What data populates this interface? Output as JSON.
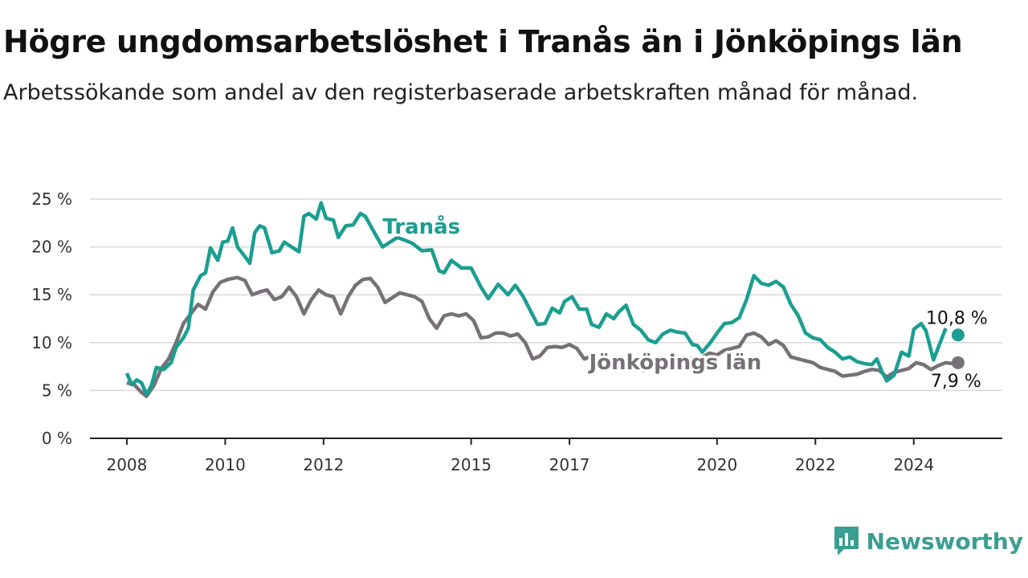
{
  "title": "Högre ungdomsarbetslöshet i Tranås än i Jönköpings län",
  "subtitle": "Arbetssökande som andel av den registerbaserade arbetskraften månad för månad.",
  "brand": {
    "name": "Newsworthy",
    "icon": "newsworthy-logo-icon",
    "color": "#3a9e92"
  },
  "chart_data": {
    "type": "line",
    "title": "Högre ungdomsarbetslöshet i Tranås än i Jönköpings län",
    "subtitle": "Arbetssökande som andel av den registerbaserade arbetskraften månad för månad.",
    "xlabel": "",
    "ylabel": "",
    "x_ticks": [
      {
        "year": 2008,
        "label": "2008"
      },
      {
        "year": 2010,
        "label": "2010"
      },
      {
        "year": 2012,
        "label": "2012"
      },
      {
        "year": 2015,
        "label": "2015"
      },
      {
        "year": 2017,
        "label": "2017"
      },
      {
        "year": 2020,
        "label": "2020"
      },
      {
        "year": 2022,
        "label": "2022"
      },
      {
        "year": 2024,
        "label": "2024"
      }
    ],
    "y_ticks": [
      {
        "value": 0,
        "label": "0 %"
      },
      {
        "value": 5,
        "label": "5 %"
      },
      {
        "value": 10,
        "label": "10 %"
      },
      {
        "value": 15,
        "label": "15 %"
      },
      {
        "value": 20,
        "label": "20 %"
      },
      {
        "value": 25,
        "label": "25 %"
      }
    ],
    "xlim": [
      2007.25,
      2025.8
    ],
    "ylim": [
      0,
      25
    ],
    "grid": true,
    "series": [
      {
        "name": "Tranås",
        "color": "#1a9e91",
        "end_label": "10,8 %",
        "end_value": 10.8,
        "end_x": 2024.9,
        "points": [
          [
            2008.0,
            6.8
          ],
          [
            2008.1,
            5.6
          ],
          [
            2008.2,
            6.1
          ],
          [
            2008.3,
            5.8
          ],
          [
            2008.4,
            4.6
          ],
          [
            2008.5,
            5.5
          ],
          [
            2008.6,
            7.4
          ],
          [
            2008.75,
            7.2
          ],
          [
            2008.9,
            7.9
          ],
          [
            2009.0,
            9.5
          ],
          [
            2009.15,
            10.5
          ],
          [
            2009.25,
            11.5
          ],
          [
            2009.35,
            15.5
          ],
          [
            2009.5,
            17.0
          ],
          [
            2009.6,
            17.3
          ],
          [
            2009.7,
            19.9
          ],
          [
            2009.85,
            18.6
          ],
          [
            2009.95,
            20.5
          ],
          [
            2010.05,
            20.6
          ],
          [
            2010.15,
            22.0
          ],
          [
            2010.25,
            20.0
          ],
          [
            2010.4,
            19.0
          ],
          [
            2010.5,
            18.3
          ],
          [
            2010.6,
            21.5
          ],
          [
            2010.7,
            22.2
          ],
          [
            2010.8,
            22.0
          ],
          [
            2010.95,
            19.4
          ],
          [
            2011.1,
            19.6
          ],
          [
            2011.2,
            20.5
          ],
          [
            2011.35,
            20.0
          ],
          [
            2011.5,
            19.5
          ],
          [
            2011.6,
            23.2
          ],
          [
            2011.7,
            23.5
          ],
          [
            2011.85,
            22.9
          ],
          [
            2011.95,
            24.6
          ],
          [
            2012.05,
            23.0
          ],
          [
            2012.2,
            22.8
          ],
          [
            2012.3,
            21.0
          ],
          [
            2012.45,
            22.2
          ],
          [
            2012.6,
            22.3
          ],
          [
            2012.75,
            23.5
          ],
          [
            2012.85,
            23.2
          ],
          [
            2013.0,
            21.8
          ],
          [
            2013.2,
            20.0
          ],
          [
            2013.5,
            21.0
          ],
          [
            2013.8,
            20.4
          ],
          [
            2014.0,
            19.6
          ],
          [
            2014.2,
            19.7
          ],
          [
            2014.35,
            17.5
          ],
          [
            2014.45,
            17.3
          ],
          [
            2014.6,
            18.6
          ],
          [
            2014.8,
            17.8
          ],
          [
            2015.0,
            17.8
          ],
          [
            2015.2,
            15.8
          ],
          [
            2015.35,
            14.6
          ],
          [
            2015.55,
            16.1
          ],
          [
            2015.75,
            15.0
          ],
          [
            2015.9,
            16.0
          ],
          [
            2016.05,
            14.9
          ],
          [
            2016.2,
            13.4
          ],
          [
            2016.35,
            11.9
          ],
          [
            2016.5,
            12.0
          ],
          [
            2016.65,
            13.6
          ],
          [
            2016.8,
            13.1
          ],
          [
            2016.9,
            14.3
          ],
          [
            2017.05,
            14.8
          ],
          [
            2017.2,
            13.5
          ],
          [
            2017.35,
            13.5
          ],
          [
            2017.45,
            11.9
          ],
          [
            2017.6,
            11.6
          ],
          [
            2017.75,
            13.0
          ],
          [
            2017.9,
            12.5
          ],
          [
            2018.0,
            13.2
          ],
          [
            2018.15,
            13.9
          ],
          [
            2018.3,
            11.9
          ],
          [
            2018.45,
            11.3
          ],
          [
            2018.6,
            10.3
          ],
          [
            2018.75,
            10.0
          ],
          [
            2018.9,
            10.9
          ],
          [
            2019.05,
            11.3
          ],
          [
            2019.2,
            11.1
          ],
          [
            2019.35,
            11.0
          ],
          [
            2019.5,
            9.8
          ],
          [
            2019.6,
            9.7
          ],
          [
            2019.7,
            9.0
          ],
          [
            2019.85,
            9.9
          ],
          [
            2020.0,
            11.0
          ],
          [
            2020.15,
            12.0
          ],
          [
            2020.3,
            12.1
          ],
          [
            2020.45,
            12.6
          ],
          [
            2020.6,
            14.5
          ],
          [
            2020.75,
            17.0
          ],
          [
            2020.9,
            16.2
          ],
          [
            2021.05,
            16.0
          ],
          [
            2021.2,
            16.4
          ],
          [
            2021.35,
            15.8
          ],
          [
            2021.5,
            14.0
          ],
          [
            2021.65,
            12.8
          ],
          [
            2021.8,
            11.0
          ],
          [
            2021.95,
            10.5
          ],
          [
            2022.1,
            10.3
          ],
          [
            2022.25,
            9.5
          ],
          [
            2022.4,
            9.0
          ],
          [
            2022.55,
            8.3
          ],
          [
            2022.7,
            8.5
          ],
          [
            2022.85,
            8.0
          ],
          [
            2023.0,
            7.8
          ],
          [
            2023.15,
            7.7
          ],
          [
            2023.25,
            8.3
          ],
          [
            2023.35,
            7.0
          ],
          [
            2023.45,
            6.0
          ],
          [
            2023.6,
            6.6
          ],
          [
            2023.75,
            9.0
          ],
          [
            2023.9,
            8.6
          ],
          [
            2024.0,
            11.4
          ],
          [
            2024.15,
            12.0
          ],
          [
            2024.25,
            11.2
          ],
          [
            2024.4,
            8.2
          ],
          [
            2024.55,
            10.2
          ],
          [
            2024.65,
            11.5
          ]
        ]
      },
      {
        "name": "Jönköpings län",
        "color": "#767176",
        "end_label": "7,9 %",
        "end_value": 7.9,
        "end_x": 2024.9,
        "points": [
          [
            2008.0,
            5.8
          ],
          [
            2008.15,
            5.6
          ],
          [
            2008.3,
            4.8
          ],
          [
            2008.4,
            4.4
          ],
          [
            2008.55,
            5.5
          ],
          [
            2008.7,
            7.3
          ],
          [
            2008.85,
            8.3
          ],
          [
            2009.0,
            10.0
          ],
          [
            2009.15,
            12.0
          ],
          [
            2009.3,
            13.0
          ],
          [
            2009.45,
            14.0
          ],
          [
            2009.6,
            13.5
          ],
          [
            2009.75,
            15.3
          ],
          [
            2009.9,
            16.3
          ],
          [
            2010.05,
            16.6
          ],
          [
            2010.25,
            16.8
          ],
          [
            2010.4,
            16.5
          ],
          [
            2010.55,
            15.0
          ],
          [
            2010.7,
            15.3
          ],
          [
            2010.85,
            15.5
          ],
          [
            2011.0,
            14.5
          ],
          [
            2011.15,
            14.8
          ],
          [
            2011.3,
            15.8
          ],
          [
            2011.45,
            14.8
          ],
          [
            2011.6,
            13.0
          ],
          [
            2011.75,
            14.5
          ],
          [
            2011.9,
            15.5
          ],
          [
            2012.05,
            15.0
          ],
          [
            2012.2,
            14.8
          ],
          [
            2012.35,
            13.0
          ],
          [
            2012.5,
            14.8
          ],
          [
            2012.65,
            16.0
          ],
          [
            2012.8,
            16.6
          ],
          [
            2012.95,
            16.7
          ],
          [
            2013.1,
            15.8
          ],
          [
            2013.25,
            14.2
          ],
          [
            2013.4,
            14.7
          ],
          [
            2013.55,
            15.2
          ],
          [
            2013.7,
            15.0
          ],
          [
            2013.85,
            14.8
          ],
          [
            2014.0,
            14.3
          ],
          [
            2014.15,
            12.5
          ],
          [
            2014.3,
            11.5
          ],
          [
            2014.45,
            12.8
          ],
          [
            2014.6,
            13.0
          ],
          [
            2014.75,
            12.8
          ],
          [
            2014.9,
            13.0
          ],
          [
            2015.05,
            12.3
          ],
          [
            2015.2,
            10.5
          ],
          [
            2015.35,
            10.6
          ],
          [
            2015.5,
            11.0
          ],
          [
            2015.65,
            11.0
          ],
          [
            2015.8,
            10.7
          ],
          [
            2015.95,
            10.9
          ],
          [
            2016.1,
            10.0
          ],
          [
            2016.25,
            8.3
          ],
          [
            2016.4,
            8.6
          ],
          [
            2016.55,
            9.5
          ],
          [
            2016.7,
            9.6
          ],
          [
            2016.85,
            9.5
          ],
          [
            2017.0,
            9.8
          ],
          [
            2017.15,
            9.4
          ],
          [
            2017.3,
            8.3
          ],
          [
            2017.45,
            8.6
          ],
          [
            2017.6,
            7.9
          ],
          [
            2017.75,
            8.1
          ],
          [
            2017.9,
            7.4
          ],
          [
            2018.05,
            7.6
          ],
          [
            2018.2,
            7.8
          ],
          [
            2018.35,
            7.5
          ],
          [
            2018.5,
            7.1
          ],
          [
            2018.65,
            7.6
          ],
          [
            2018.8,
            7.9
          ],
          [
            2018.95,
            7.6
          ],
          [
            2019.1,
            7.8
          ],
          [
            2019.25,
            8.3
          ],
          [
            2019.4,
            8.4
          ],
          [
            2019.55,
            8.2
          ],
          [
            2019.7,
            8.5
          ],
          [
            2019.85,
            8.9
          ],
          [
            2020.0,
            8.7
          ],
          [
            2020.15,
            9.2
          ],
          [
            2020.3,
            9.4
          ],
          [
            2020.45,
            9.6
          ],
          [
            2020.6,
            10.8
          ],
          [
            2020.75,
            11.0
          ],
          [
            2020.9,
            10.6
          ],
          [
            2021.05,
            9.8
          ],
          [
            2021.2,
            10.2
          ],
          [
            2021.35,
            9.7
          ],
          [
            2021.5,
            8.5
          ],
          [
            2021.65,
            8.3
          ],
          [
            2021.8,
            8.1
          ],
          [
            2021.95,
            7.9
          ],
          [
            2022.1,
            7.4
          ],
          [
            2022.25,
            7.2
          ],
          [
            2022.4,
            7.0
          ],
          [
            2022.55,
            6.5
          ],
          [
            2022.7,
            6.6
          ],
          [
            2022.85,
            6.7
          ],
          [
            2023.0,
            7.0
          ],
          [
            2023.15,
            7.2
          ],
          [
            2023.3,
            7.1
          ],
          [
            2023.45,
            6.4
          ],
          [
            2023.6,
            6.9
          ],
          [
            2023.75,
            7.1
          ],
          [
            2023.9,
            7.3
          ],
          [
            2024.05,
            7.9
          ],
          [
            2024.2,
            7.7
          ],
          [
            2024.35,
            7.2
          ],
          [
            2024.5,
            7.6
          ],
          [
            2024.65,
            7.9
          ],
          [
            2024.8,
            7.8
          ]
        ]
      }
    ],
    "series_labels": [
      {
        "text": "Tranås",
        "series": "Tranås",
        "x": 2013.2,
        "y": 21.4,
        "anchor": "start"
      },
      {
        "text": "Jönköpings län",
        "series": "Jönköpings län",
        "x": 2017.4,
        "y": 7.2,
        "anchor": "start"
      }
    ]
  }
}
